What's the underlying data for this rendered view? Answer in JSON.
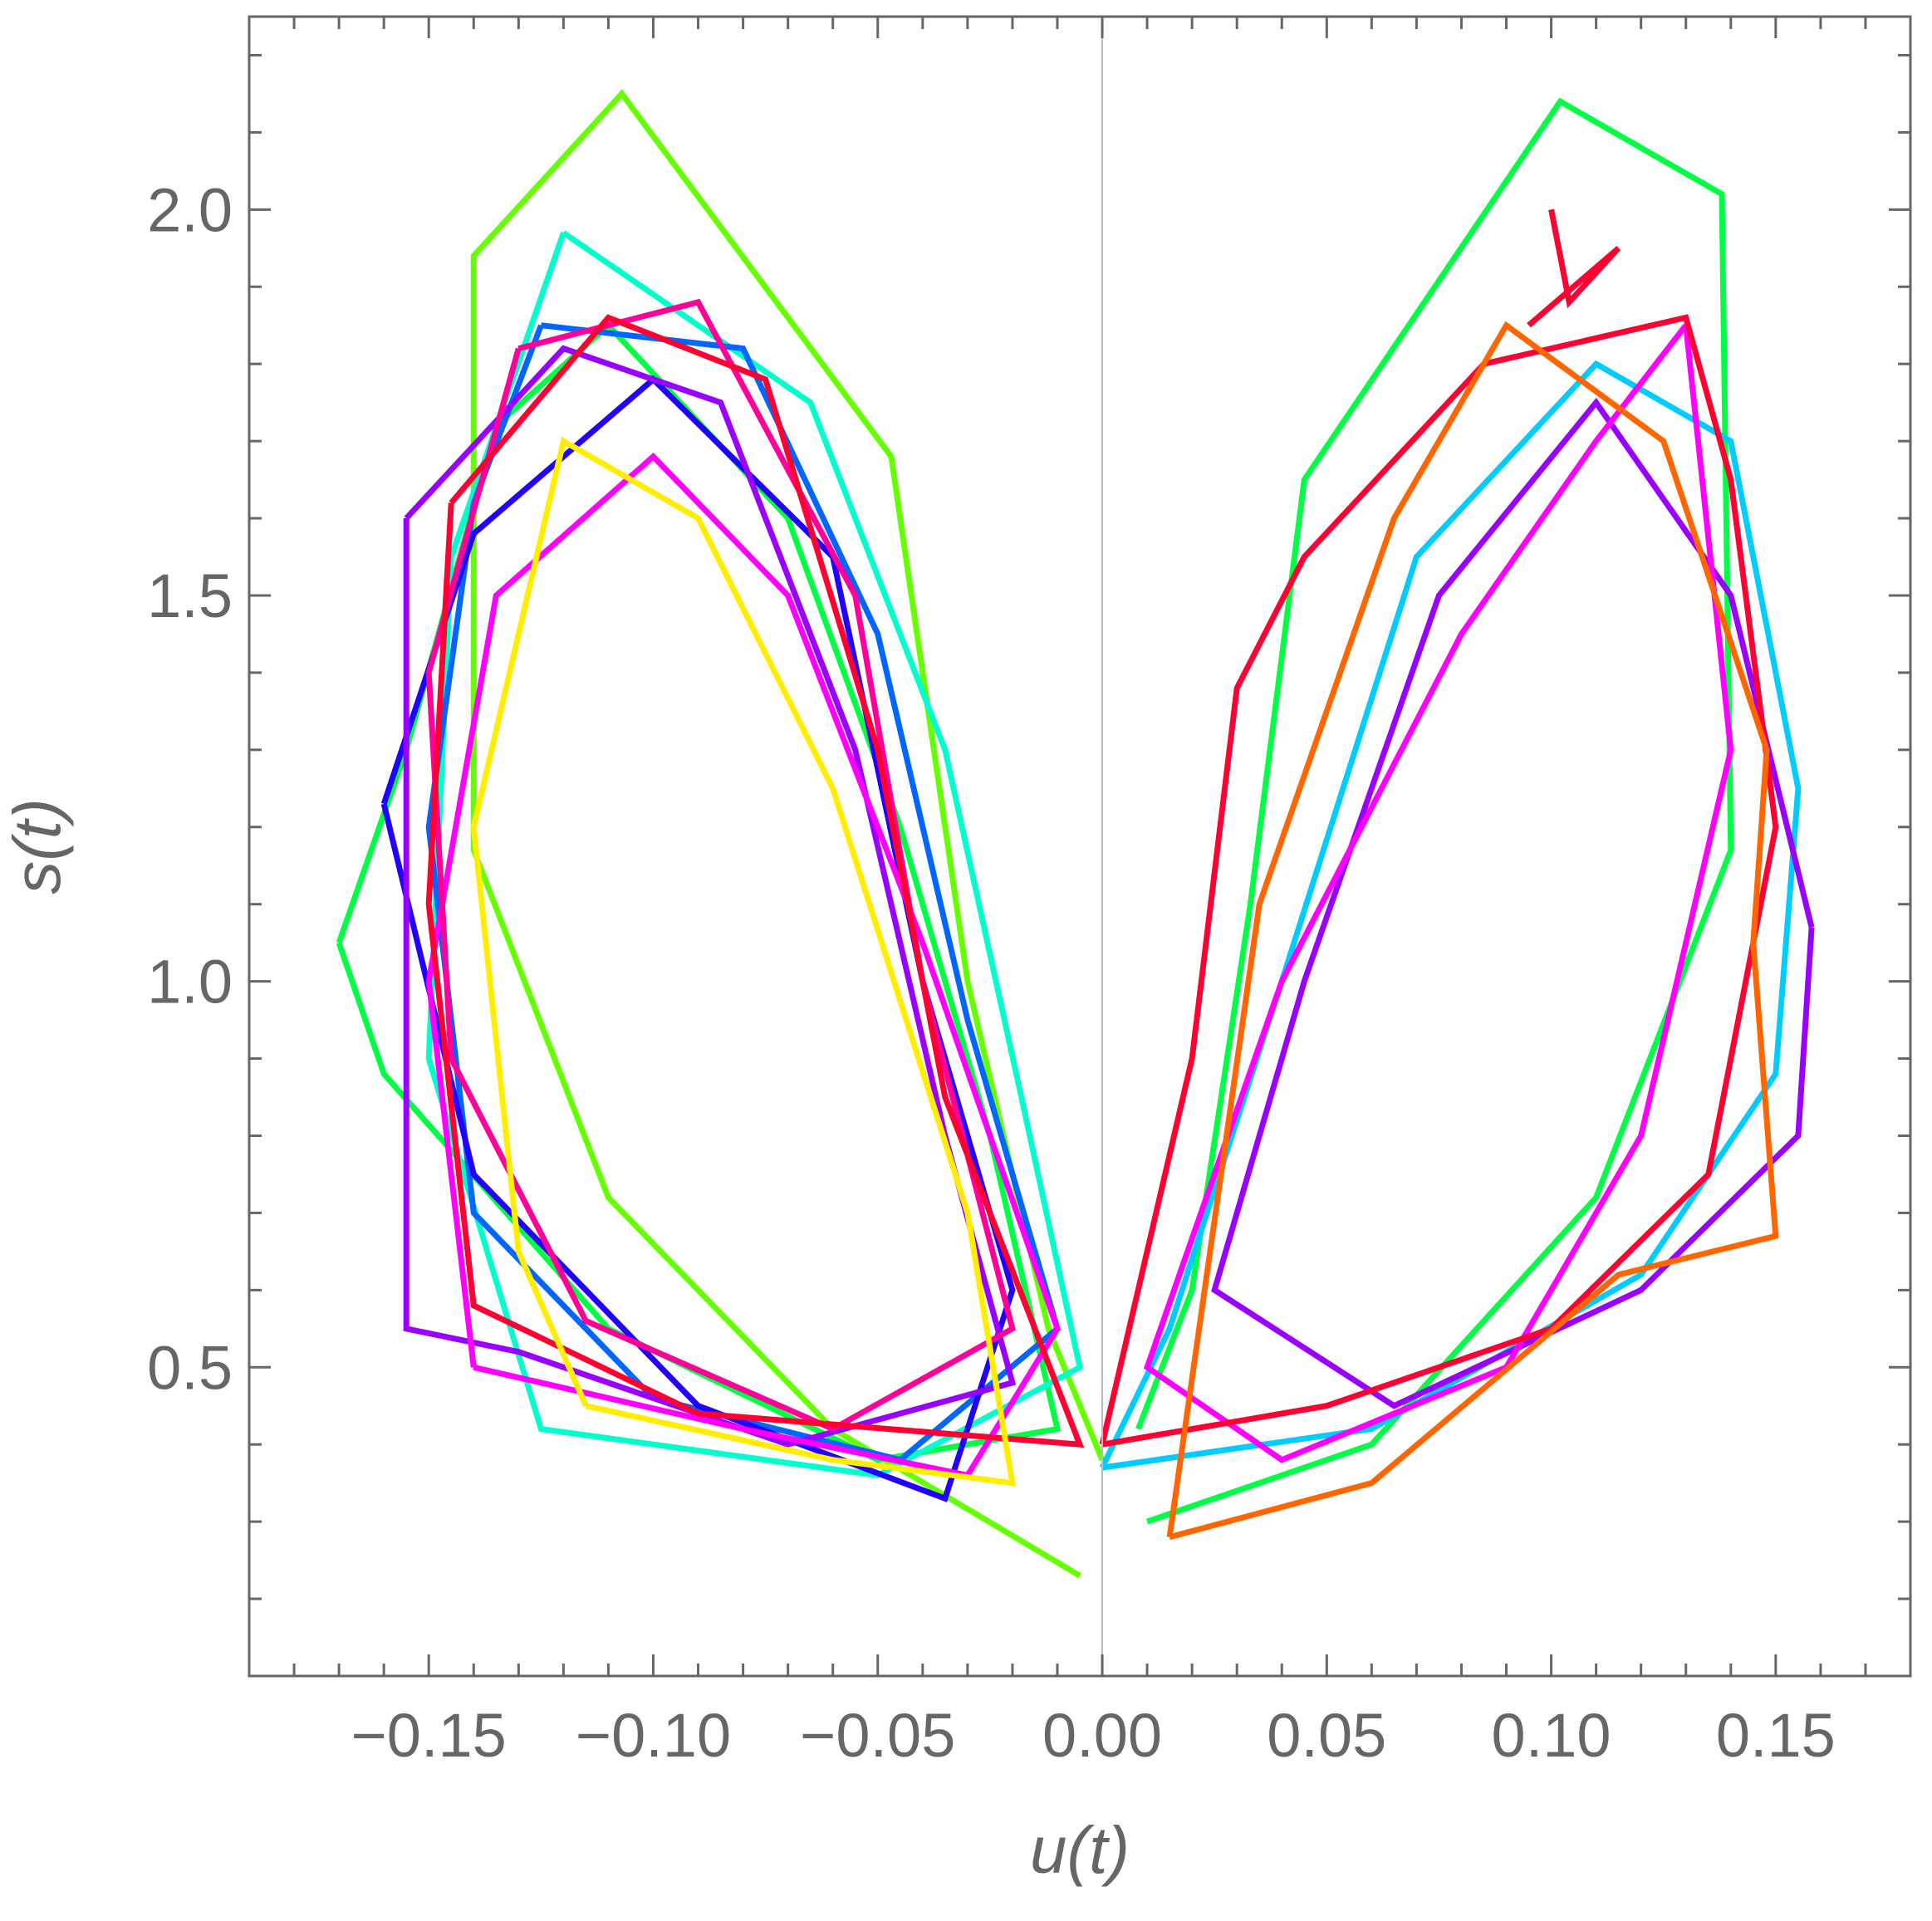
{
  "chart_data": {
    "type": "line",
    "title": "",
    "xlabel": "u(t)",
    "ylabel": "s(t)",
    "xlim": [
      -0.19,
      0.18
    ],
    "ylim": [
      0.1,
      2.25
    ],
    "x_ticks": [
      -0.15,
      -0.1,
      -0.05,
      0.0,
      0.05,
      0.1,
      0.15
    ],
    "x_tick_labels": [
      "−0.15",
      "−0.10",
      "−0.05",
      "0.00",
      "0.05",
      "0.10",
      "0.15"
    ],
    "y_ticks": [
      0.5,
      1.0,
      1.5,
      2.0
    ],
    "y_tick_labels": [
      "0.5",
      "1.0",
      "1.5",
      "2.0"
    ],
    "grid": false,
    "legend": "none",
    "frame": true,
    "zero_line_x": 0.0,
    "color_scheme": "rainbow hue gradient from green through cyan, blue, violet, magenta to red along trajectory time",
    "series_colors": [
      "#66ff00",
      "#00ff44",
      "#00ffcc",
      "#00ccff",
      "#0066ff",
      "#2200ff",
      "#9900ff",
      "#ff00ff",
      "#ff0099",
      "#ff0033",
      "#ff6600",
      "#ffee00"
    ],
    "series": [
      {
        "color": "#66ff00",
        "points": [
          [
            -0.005,
            0.23
          ],
          [
            -0.06,
            0.42
          ],
          [
            -0.11,
            0.72
          ],
          [
            -0.14,
            1.17
          ],
          [
            -0.14,
            1.94
          ],
          [
            -0.107,
            2.15
          ],
          [
            -0.047,
            1.68
          ],
          [
            -0.03,
            1.0
          ],
          [
            -0.012,
            0.55
          ],
          [
            0.0,
            0.38
          ]
        ]
      },
      {
        "color": "#00ff44",
        "points": [
          [
            0.01,
            0.3
          ],
          [
            0.06,
            0.4
          ],
          [
            0.11,
            0.72
          ],
          [
            0.14,
            1.17
          ],
          [
            0.138,
            2.02
          ],
          [
            0.102,
            2.14
          ],
          [
            0.045,
            1.65
          ],
          [
            0.033,
            1.1
          ],
          [
            0.02,
            0.6
          ],
          [
            0.008,
            0.42
          ]
        ]
      },
      {
        "color": "#00ff44",
        "points": [
          [
            -0.17,
            1.05
          ],
          [
            -0.155,
            1.3
          ],
          [
            -0.135,
            1.72
          ],
          [
            -0.11,
            1.85
          ],
          [
            -0.07,
            1.6
          ],
          [
            -0.045,
            1.2
          ],
          [
            -0.025,
            0.8
          ],
          [
            -0.01,
            0.42
          ],
          [
            -0.05,
            0.38
          ],
          [
            -0.11,
            0.55
          ],
          [
            -0.16,
            0.88
          ],
          [
            -0.17,
            1.05
          ]
        ]
      },
      {
        "color": "#00ffcc",
        "points": [
          [
            -0.12,
            1.97
          ],
          [
            -0.065,
            1.75
          ],
          [
            -0.035,
            1.3
          ],
          [
            -0.018,
            0.85
          ],
          [
            -0.005,
            0.5
          ],
          [
            -0.05,
            0.36
          ],
          [
            -0.125,
            0.42
          ],
          [
            -0.15,
            0.9
          ],
          [
            -0.145,
            1.55
          ],
          [
            -0.12,
            1.97
          ]
        ]
      },
      {
        "color": "#00ccff",
        "points": [
          [
            0.0,
            0.37
          ],
          [
            0.06,
            0.42
          ],
          [
            0.12,
            0.62
          ],
          [
            0.15,
            0.88
          ],
          [
            0.155,
            1.25
          ],
          [
            0.14,
            1.7
          ],
          [
            0.11,
            1.8
          ],
          [
            0.07,
            1.55
          ],
          [
            0.04,
            1.0
          ],
          [
            0.015,
            0.55
          ],
          [
            0.0,
            0.37
          ]
        ]
      },
      {
        "color": "#0066ff",
        "points": [
          [
            -0.125,
            1.85
          ],
          [
            -0.08,
            1.82
          ],
          [
            -0.05,
            1.45
          ],
          [
            -0.03,
            0.95
          ],
          [
            -0.01,
            0.55
          ],
          [
            -0.045,
            0.38
          ],
          [
            -0.1,
            0.46
          ],
          [
            -0.14,
            0.7
          ],
          [
            -0.15,
            1.2
          ],
          [
            -0.14,
            1.62
          ],
          [
            -0.125,
            1.85
          ]
        ]
      },
      {
        "color": "#2200ff",
        "points": [
          [
            -0.16,
            1.23
          ],
          [
            -0.14,
            1.58
          ],
          [
            -0.1,
            1.78
          ],
          [
            -0.06,
            1.55
          ],
          [
            -0.04,
            1.0
          ],
          [
            -0.02,
            0.6
          ],
          [
            -0.035,
            0.33
          ],
          [
            -0.09,
            0.45
          ],
          [
            -0.14,
            0.75
          ],
          [
            -0.16,
            1.23
          ]
        ]
      },
      {
        "color": "#9900ff",
        "points": [
          [
            -0.155,
            1.6
          ],
          [
            -0.12,
            1.82
          ],
          [
            -0.085,
            1.75
          ],
          [
            -0.055,
            1.3
          ],
          [
            -0.035,
            0.8
          ],
          [
            -0.02,
            0.48
          ],
          [
            -0.07,
            0.4
          ],
          [
            -0.13,
            0.52
          ],
          [
            -0.155,
            0.55
          ],
          [
            -0.155,
            1.6
          ]
        ]
      },
      {
        "color": "#9900ff",
        "points": [
          [
            0.158,
            1.07
          ],
          [
            0.14,
            1.5
          ],
          [
            0.11,
            1.75
          ],
          [
            0.075,
            1.5
          ],
          [
            0.045,
            1.0
          ],
          [
            0.025,
            0.6
          ],
          [
            0.065,
            0.45
          ],
          [
            0.12,
            0.6
          ],
          [
            0.155,
            0.8
          ],
          [
            0.158,
            1.07
          ]
        ]
      },
      {
        "color": "#ff00ff",
        "points": [
          [
            -0.14,
            0.5
          ],
          [
            -0.08,
            0.42
          ],
          [
            -0.03,
            0.36
          ],
          [
            -0.01,
            0.55
          ],
          [
            -0.04,
            1.05
          ],
          [
            -0.07,
            1.5
          ],
          [
            -0.1,
            1.68
          ],
          [
            -0.135,
            1.5
          ],
          [
            -0.15,
            1.0
          ],
          [
            -0.14,
            0.5
          ]
        ]
      },
      {
        "color": "#ff00ff",
        "points": [
          [
            0.13,
            1.85
          ],
          [
            0.14,
            1.3
          ],
          [
            0.12,
            0.8
          ],
          [
            0.09,
            0.5
          ],
          [
            0.04,
            0.38
          ],
          [
            0.01,
            0.5
          ],
          [
            0.04,
            1.0
          ],
          [
            0.08,
            1.45
          ],
          [
            0.11,
            1.7
          ],
          [
            0.13,
            1.85
          ]
        ]
      },
      {
        "color": "#ff0099",
        "points": [
          [
            -0.13,
            1.82
          ],
          [
            -0.09,
            1.88
          ],
          [
            -0.055,
            1.5
          ],
          [
            -0.04,
            1.0
          ],
          [
            -0.02,
            0.55
          ],
          [
            -0.06,
            0.42
          ],
          [
            -0.115,
            0.56
          ],
          [
            -0.145,
            0.9
          ],
          [
            -0.15,
            1.4
          ],
          [
            -0.13,
            1.82
          ]
        ]
      },
      {
        "color": "#ff0033",
        "points": [
          [
            -0.145,
            1.62
          ],
          [
            -0.11,
            1.86
          ],
          [
            -0.075,
            1.78
          ],
          [
            -0.05,
            1.3
          ],
          [
            -0.035,
            0.85
          ],
          [
            -0.005,
            0.4
          ],
          [
            -0.09,
            0.44
          ],
          [
            -0.14,
            0.58
          ],
          [
            -0.15,
            1.1
          ],
          [
            -0.145,
            1.62
          ]
        ]
      },
      {
        "color": "#ff0033",
        "points": [
          [
            0.0,
            0.4
          ],
          [
            0.05,
            0.45
          ],
          [
            0.1,
            0.55
          ],
          [
            0.135,
            0.75
          ],
          [
            0.15,
            1.2
          ],
          [
            0.14,
            1.65
          ],
          [
            0.13,
            1.86
          ],
          [
            0.085,
            1.8
          ],
          [
            0.045,
            1.55
          ],
          [
            0.03,
            1.38
          ],
          [
            0.02,
            0.9
          ],
          [
            0.0,
            0.4
          ]
        ]
      },
      {
        "color": "#ff0033",
        "points": [
          [
            0.1,
            2.0
          ],
          [
            0.104,
            1.88
          ],
          [
            0.115,
            1.95
          ],
          [
            0.095,
            1.85
          ]
        ]
      },
      {
        "color": "#ff6600",
        "points": [
          [
            0.015,
            0.28
          ],
          [
            0.06,
            0.35
          ],
          [
            0.115,
            0.62
          ],
          [
            0.15,
            0.67
          ],
          [
            0.145,
            1.05
          ],
          [
            0.148,
            1.3
          ],
          [
            0.125,
            1.7
          ],
          [
            0.09,
            1.85
          ],
          [
            0.065,
            1.6
          ],
          [
            0.035,
            1.1
          ],
          [
            0.015,
            0.28
          ]
        ]
      },
      {
        "color": "#ffee00",
        "points": [
          [
            -0.115,
            0.45
          ],
          [
            -0.06,
            0.38
          ],
          [
            -0.02,
            0.35
          ],
          [
            -0.03,
            0.7
          ],
          [
            -0.06,
            1.25
          ],
          [
            -0.09,
            1.6
          ],
          [
            -0.12,
            1.7
          ],
          [
            -0.14,
            1.2
          ],
          [
            -0.13,
            0.65
          ],
          [
            -0.115,
            0.45
          ]
        ]
      }
    ]
  }
}
